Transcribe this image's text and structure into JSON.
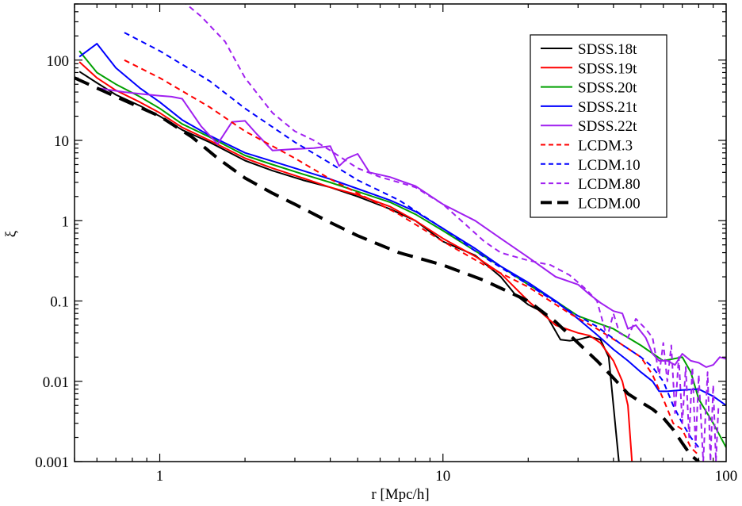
{
  "chart_data": {
    "type": "line",
    "title": "",
    "xlabel": "r [Mpc/h]",
    "ylabel": "ξ",
    "xscale": "log",
    "yscale": "log",
    "xlim": [
      0.5,
      100
    ],
    "ylim": [
      0.001,
      500
    ],
    "x_ticks": [
      {
        "value": 1,
        "label": "1"
      },
      {
        "value": 10,
        "label": "10"
      },
      {
        "value": 100,
        "label": "100"
      }
    ],
    "y_ticks": [
      {
        "value": 0.001,
        "label": "0.001"
      },
      {
        "value": 0.01,
        "label": "0.01"
      },
      {
        "value": 0.1,
        "label": "0.1"
      },
      {
        "value": 1,
        "label": "1"
      },
      {
        "value": 10,
        "label": "10"
      },
      {
        "value": 100,
        "label": "100"
      }
    ],
    "legend_position": "top-right",
    "series": [
      {
        "name": "SDSS.18t",
        "color": "#000000",
        "style": "solid",
        "width": "normal",
        "x": [
          0.52,
          0.6,
          0.7,
          0.85,
          1.0,
          1.2,
          1.5,
          2.0,
          2.5,
          3.2,
          4.0,
          5.0,
          6.5,
          8.0,
          10.0,
          13.0,
          16.0,
          18.0,
          20.0,
          23.0,
          26.0,
          28.0,
          30.0,
          33.0,
          36.0,
          38.5,
          40.0,
          41.0,
          41.8
        ],
        "y": [
          72,
          52,
          37,
          27,
          20,
          13.5,
          9.5,
          5.6,
          4.2,
          3.2,
          2.6,
          2.0,
          1.4,
          1.0,
          0.55,
          0.37,
          0.2,
          0.12,
          0.09,
          0.07,
          0.033,
          0.032,
          0.033,
          0.036,
          0.033,
          0.02,
          0.005,
          0.002,
          0.001
        ]
      },
      {
        "name": "SDSS.19t",
        "color": "#ff0000",
        "style": "solid",
        "width": "normal",
        "x": [
          0.52,
          0.6,
          0.7,
          0.85,
          1.0,
          1.2,
          1.5,
          2.0,
          2.5,
          3.2,
          4.0,
          5.0,
          6.5,
          8.0,
          10.0,
          13.0,
          16.0,
          20.0,
          25.0,
          30.0,
          33.0,
          36.0,
          40.0,
          43.0,
          45.0,
          46.5
        ],
        "y": [
          95,
          60,
          42,
          30,
          22,
          14.5,
          10.0,
          6.0,
          4.5,
          3.4,
          2.6,
          2.1,
          1.5,
          1.0,
          0.6,
          0.36,
          0.22,
          0.1,
          0.05,
          0.04,
          0.037,
          0.03,
          0.018,
          0.01,
          0.005,
          0.001
        ]
      },
      {
        "name": "SDSS.20t",
        "color": "#00a000",
        "style": "solid",
        "width": "normal",
        "x": [
          0.52,
          0.6,
          0.7,
          0.85,
          1.0,
          1.2,
          1.5,
          2.0,
          2.5,
          3.2,
          4.0,
          5.0,
          6.5,
          8.0,
          10.0,
          13.0,
          16.0,
          20.0,
          25.0,
          30.0,
          40.0,
          50.0,
          60.0,
          70.0,
          75.0,
          80.0,
          90.0,
          100.0
        ],
        "y": [
          130,
          70,
          50,
          35,
          25,
          16,
          11,
          6.5,
          5.0,
          3.8,
          3.0,
          2.3,
          1.7,
          1.2,
          0.75,
          0.42,
          0.27,
          0.16,
          0.1,
          0.065,
          0.045,
          0.028,
          0.018,
          0.02,
          0.013,
          0.006,
          0.003,
          0.0015
        ]
      },
      {
        "name": "SDSS.21t",
        "color": "#0000ff",
        "style": "solid",
        "width": "normal",
        "x": [
          0.52,
          0.6,
          0.7,
          0.85,
          1.0,
          1.2,
          1.5,
          2.0,
          2.5,
          3.2,
          4.0,
          5.0,
          6.5,
          8.0,
          10.0,
          13.0,
          16.0,
          20.0,
          25.0,
          30.0,
          35.0,
          40.0,
          45.0,
          50.0,
          55.0,
          58.0,
          62.0,
          70.0,
          80.0,
          90.0,
          100.0
        ],
        "y": [
          110,
          160,
          80,
          45,
          30,
          18,
          11.5,
          7.0,
          5.5,
          4.2,
          3.3,
          2.5,
          1.8,
          1.3,
          0.8,
          0.45,
          0.27,
          0.17,
          0.1,
          0.06,
          0.038,
          0.025,
          0.018,
          0.013,
          0.01,
          0.0075,
          0.0075,
          0.0078,
          0.008,
          0.0065,
          0.005
        ]
      },
      {
        "name": "SDSS.22t",
        "color": "#a020f0",
        "style": "solid",
        "width": "normal",
        "x": [
          0.6,
          0.75,
          0.85,
          1.0,
          1.1,
          1.2,
          1.4,
          1.6,
          1.8,
          2.0,
          2.2,
          2.5,
          3.0,
          3.5,
          4.0,
          4.3,
          4.6,
          5.0,
          5.5,
          6.5,
          8.0,
          10.0,
          13.0,
          16.0,
          20.0,
          25.0,
          30.0,
          33.0,
          36.0,
          40.0,
          43.0,
          45.0,
          48.0,
          52.0,
          55.0,
          58.0,
          62.0,
          66.0,
          70.0,
          75.0,
          80.0,
          85.0,
          90.0,
          95.0,
          100.0
        ],
        "y": [
          45,
          40,
          38,
          36,
          35,
          33,
          15,
          9,
          17,
          17.5,
          12,
          7.5,
          7.8,
          8.0,
          8.5,
          4.8,
          6.0,
          6.8,
          4.0,
          3.5,
          2.7,
          1.6,
          1.0,
          0.6,
          0.35,
          0.2,
          0.16,
          0.12,
          0.095,
          0.075,
          0.07,
          0.045,
          0.05,
          0.035,
          0.022,
          0.018,
          0.018,
          0.016,
          0.022,
          0.018,
          0.017,
          0.015,
          0.016,
          0.02,
          0.019
        ]
      },
      {
        "name": "LCDM.3",
        "color": "#ff0000",
        "style": "dashed",
        "width": "normal",
        "x": [
          0.75,
          1.0,
          1.5,
          2.0,
          3.0,
          4.0,
          5.0,
          7.0,
          10.0,
          14.0,
          20.0,
          28.0,
          35.0,
          42.0,
          50.0,
          55.0,
          60.0,
          65.0,
          70.0,
          75.0,
          80.0
        ],
        "y": [
          100,
          60,
          26,
          13,
          6.0,
          3.3,
          2.2,
          1.2,
          0.55,
          0.28,
          0.15,
          0.07,
          0.045,
          0.03,
          0.02,
          0.012,
          0.006,
          0.003,
          0.0025,
          0.0015,
          0.0012
        ]
      },
      {
        "name": "LCDM.10",
        "color": "#0000ff",
        "style": "dashed",
        "width": "normal",
        "x": [
          0.75,
          1.0,
          1.5,
          2.0,
          3.0,
          4.0,
          5.0,
          7.0,
          10.0,
          14.0,
          20.0,
          28.0,
          35.0,
          42.0,
          50.0,
          55.0,
          60.0,
          65.0,
          70.0,
          75.0,
          80.0
        ],
        "y": [
          220,
          130,
          55,
          25,
          9.5,
          5.2,
          3.2,
          1.8,
          0.8,
          0.35,
          0.16,
          0.075,
          0.048,
          0.03,
          0.02,
          0.015,
          0.01,
          0.005,
          0.003,
          0.002,
          0.0015
        ]
      },
      {
        "name": "LCDM.80",
        "color": "#a020f0",
        "style": "dashed",
        "width": "normal",
        "x": [
          1.2,
          1.4,
          1.7,
          2.0,
          2.5,
          3.0,
          3.5,
          4.0,
          5.0,
          6.0,
          7.0,
          8.0,
          10.0,
          12.0,
          14.0,
          16.0,
          20.0,
          24.0,
          28.0,
          32.0,
          35.0,
          38.0,
          40.0,
          42.0,
          45.0,
          48.0,
          52.0,
          55.0,
          58.0,
          60.0,
          62.0,
          64.0,
          66.0,
          68.0,
          70.0,
          72.0,
          74.0,
          76.0,
          78.0,
          80.0,
          83.0,
          86.0,
          88.0,
          90.0,
          92.0,
          94.0
        ],
        "y": [
          550,
          350,
          170,
          60,
          22,
          13,
          10,
          7.5,
          4.5,
          3.5,
          3.0,
          2.6,
          1.6,
          0.9,
          0.55,
          0.4,
          0.32,
          0.28,
          0.21,
          0.14,
          0.1,
          0.035,
          0.07,
          0.04,
          0.035,
          0.06,
          0.045,
          0.035,
          0.012,
          0.03,
          0.01,
          0.028,
          0.004,
          0.02,
          0.003,
          0.015,
          0.002,
          0.015,
          0.0015,
          0.012,
          0.001,
          0.013,
          0.001,
          0.009,
          0.001,
          0.005
        ]
      },
      {
        "name": "LCDM.00",
        "color": "#000000",
        "style": "long-dashed",
        "width": "thick",
        "x": [
          0.5,
          0.7,
          1.0,
          1.3,
          1.6,
          2.0,
          2.5,
          3.0,
          4.0,
          5.0,
          7.0,
          10.0,
          14.0,
          20.0,
          25.0,
          30.0,
          35.0,
          40.0,
          45.0,
          50.0,
          55.0,
          60.0,
          65.0,
          70.0,
          75.0,
          80.0
        ],
        "y": [
          60,
          35,
          20,
          11,
          6.0,
          3.4,
          2.2,
          1.6,
          0.95,
          0.65,
          0.4,
          0.28,
          0.18,
          0.1,
          0.055,
          0.03,
          0.018,
          0.011,
          0.007,
          0.0055,
          0.0045,
          0.0035,
          0.0025,
          0.0017,
          0.0012,
          0.001
        ]
      }
    ]
  }
}
